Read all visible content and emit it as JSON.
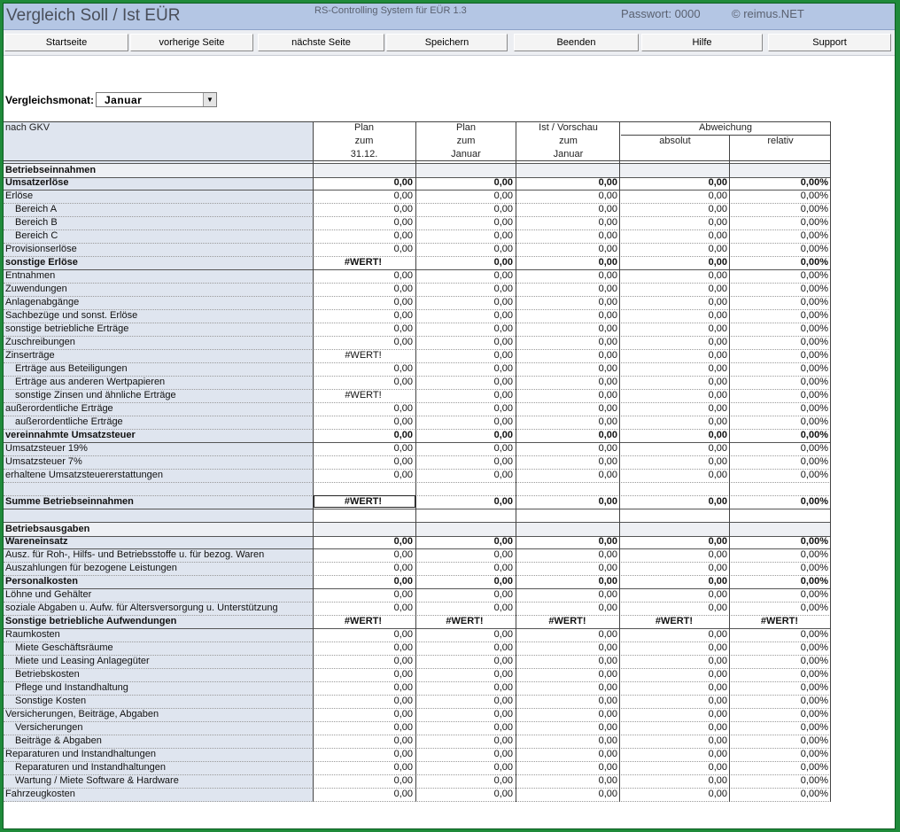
{
  "titlebar": {
    "title": "Vergleich Soll / Ist EÜR",
    "subtitle": "RS-Controlling System für EÜR 1.3",
    "password": "Passwort: 0000",
    "copyright": "© reimus.NET"
  },
  "toolbar": {
    "buttons": [
      "Startseite",
      "vorherige Seite",
      "nächste Seite",
      "Speichern",
      "Beenden",
      "Hilfe",
      "Support"
    ]
  },
  "month": {
    "label": "Vergleichsmonat:",
    "value": "Januar"
  },
  "table": {
    "header": {
      "first_col": "nach GKV",
      "col_plan_year": [
        "Plan",
        "zum",
        "31.12."
      ],
      "col_plan_month": [
        "Plan",
        "zum",
        "Januar"
      ],
      "col_actual": [
        "Ist / Vorschau",
        "zum",
        "Januar"
      ],
      "deviation": "Abweichung",
      "absolute": "absolut",
      "relative": "relativ"
    },
    "rows": [
      {
        "label": "Betriebseinnahmen",
        "style": "sec",
        "values": []
      },
      {
        "label": "Umsatzerlöse",
        "style": "bold",
        "values": [
          "0,00",
          "0,00",
          "0,00",
          "0,00",
          "0,00%"
        ]
      },
      {
        "label": "Erlöse",
        "style": "",
        "values": [
          "0,00",
          "0,00",
          "0,00",
          "0,00",
          "0,00%"
        ]
      },
      {
        "label": "Bereich A",
        "style": "ind",
        "values": [
          "0,00",
          "0,00",
          "0,00",
          "0,00",
          "0,00%"
        ]
      },
      {
        "label": "Bereich B",
        "style": "ind",
        "values": [
          "0,00",
          "0,00",
          "0,00",
          "0,00",
          "0,00%"
        ]
      },
      {
        "label": "Bereich C",
        "style": "ind",
        "values": [
          "0,00",
          "0,00",
          "0,00",
          "0,00",
          "0,00%"
        ]
      },
      {
        "label": "Provisionserlöse",
        "style": "",
        "values": [
          "0,00",
          "0,00",
          "0,00",
          "0,00",
          "0,00%"
        ]
      },
      {
        "label": "sonstige Erlöse",
        "style": "bold",
        "values": [
          "#WERT!",
          "0,00",
          "0,00",
          "0,00",
          "0,00%"
        ]
      },
      {
        "label": "Entnahmen",
        "style": "",
        "values": [
          "0,00",
          "0,00",
          "0,00",
          "0,00",
          "0,00%"
        ]
      },
      {
        "label": "Zuwendungen",
        "style": "",
        "values": [
          "0,00",
          "0,00",
          "0,00",
          "0,00",
          "0,00%"
        ]
      },
      {
        "label": "Anlagenabgänge",
        "style": "",
        "values": [
          "0,00",
          "0,00",
          "0,00",
          "0,00",
          "0,00%"
        ]
      },
      {
        "label": "Sachbezüge und sonst. Erlöse",
        "style": "",
        "values": [
          "0,00",
          "0,00",
          "0,00",
          "0,00",
          "0,00%"
        ]
      },
      {
        "label": "sonstige betriebliche Erträge",
        "style": "",
        "values": [
          "0,00",
          "0,00",
          "0,00",
          "0,00",
          "0,00%"
        ]
      },
      {
        "label": "Zuschreibungen",
        "style": "",
        "values": [
          "0,00",
          "0,00",
          "0,00",
          "0,00",
          "0,00%"
        ]
      },
      {
        "label": "Zinserträge",
        "style": "",
        "values": [
          "#WERT!",
          "0,00",
          "0,00",
          "0,00",
          "0,00%"
        ]
      },
      {
        "label": "Erträge aus Beteiligungen",
        "style": "ind",
        "values": [
          "0,00",
          "0,00",
          "0,00",
          "0,00",
          "0,00%"
        ]
      },
      {
        "label": "Erträge aus anderen Wertpapieren",
        "style": "ind",
        "values": [
          "0,00",
          "0,00",
          "0,00",
          "0,00",
          "0,00%"
        ]
      },
      {
        "label": "sonstige Zinsen und ähnliche Erträge",
        "style": "ind",
        "values": [
          "#WERT!",
          "0,00",
          "0,00",
          "0,00",
          "0,00%"
        ]
      },
      {
        "label": "außerordentliche Erträge",
        "style": "",
        "values": [
          "0,00",
          "0,00",
          "0,00",
          "0,00",
          "0,00%"
        ]
      },
      {
        "label": "außerordentliche Erträge",
        "style": "ind",
        "values": [
          "0,00",
          "0,00",
          "0,00",
          "0,00",
          "0,00%"
        ]
      },
      {
        "label": "vereinnahmte Umsatzsteuer",
        "style": "bold",
        "values": [
          "0,00",
          "0,00",
          "0,00",
          "0,00",
          "0,00%"
        ]
      },
      {
        "label": "Umsatzsteuer 19%",
        "style": "",
        "values": [
          "0,00",
          "0,00",
          "0,00",
          "0,00",
          "0,00%"
        ]
      },
      {
        "label": "Umsatzsteuer 7%",
        "style": "",
        "values": [
          "0,00",
          "0,00",
          "0,00",
          "0,00",
          "0,00%"
        ]
      },
      {
        "label": "erhaltene Umsatzsteuererstattungen",
        "style": "",
        "values": [
          "0,00",
          "0,00",
          "0,00",
          "0,00",
          "0,00%"
        ]
      },
      {
        "label": "",
        "style": "",
        "values": []
      },
      {
        "label": "Summe Betriebseinnahmen",
        "style": "bold",
        "values": [
          "#WERT!",
          "0,00",
          "0,00",
          "0,00",
          "0,00%"
        ]
      },
      {
        "label": "",
        "style": "",
        "values": []
      },
      {
        "label": "Betriebsausgaben",
        "style": "sec",
        "values": []
      },
      {
        "label": "Wareneinsatz",
        "style": "bold",
        "values": [
          "0,00",
          "0,00",
          "0,00",
          "0,00",
          "0,00%"
        ]
      },
      {
        "label": "Ausz. für Roh-, Hilfs- und Betriebsstoffe u. für bezog. Waren",
        "style": "",
        "values": [
          "0,00",
          "0,00",
          "0,00",
          "0,00",
          "0,00%"
        ]
      },
      {
        "label": "Auszahlungen für bezogene Leistungen",
        "style": "",
        "values": [
          "0,00",
          "0,00",
          "0,00",
          "0,00",
          "0,00%"
        ]
      },
      {
        "label": "Personalkosten",
        "style": "bold",
        "values": [
          "0,00",
          "0,00",
          "0,00",
          "0,00",
          "0,00%"
        ]
      },
      {
        "label": "Löhne und Gehälter",
        "style": "",
        "values": [
          "0,00",
          "0,00",
          "0,00",
          "0,00",
          "0,00%"
        ]
      },
      {
        "label": "soziale Abgaben u. Aufw. für Altersversorgung u. Unterstützung",
        "style": "",
        "values": [
          "0,00",
          "0,00",
          "0,00",
          "0,00",
          "0,00%"
        ]
      },
      {
        "label": "Sonstige betriebliche Aufwendungen",
        "style": "bold",
        "values": [
          "#WERT!",
          "#WERT!",
          "#WERT!",
          "#WERT!",
          "#WERT!"
        ]
      },
      {
        "label": "Raumkosten",
        "style": "",
        "values": [
          "0,00",
          "0,00",
          "0,00",
          "0,00",
          "0,00%"
        ]
      },
      {
        "label": "Miete Geschäftsräume",
        "style": "ind",
        "values": [
          "0,00",
          "0,00",
          "0,00",
          "0,00",
          "0,00%"
        ]
      },
      {
        "label": "Miete und Leasing Anlagegüter",
        "style": "ind",
        "values": [
          "0,00",
          "0,00",
          "0,00",
          "0,00",
          "0,00%"
        ]
      },
      {
        "label": "Betriebskosten",
        "style": "ind",
        "values": [
          "0,00",
          "0,00",
          "0,00",
          "0,00",
          "0,00%"
        ]
      },
      {
        "label": "Pflege und Instandhaltung",
        "style": "ind",
        "values": [
          "0,00",
          "0,00",
          "0,00",
          "0,00",
          "0,00%"
        ]
      },
      {
        "label": "Sonstige Kosten",
        "style": "ind",
        "values": [
          "0,00",
          "0,00",
          "0,00",
          "0,00",
          "0,00%"
        ]
      },
      {
        "label": "Versicherungen, Beiträge, Abgaben",
        "style": "",
        "values": [
          "0,00",
          "0,00",
          "0,00",
          "0,00",
          "0,00%"
        ]
      },
      {
        "label": "Versicherungen",
        "style": "ind",
        "values": [
          "0,00",
          "0,00",
          "0,00",
          "0,00",
          "0,00%"
        ]
      },
      {
        "label": "Beiträge & Abgaben",
        "style": "ind",
        "values": [
          "0,00",
          "0,00",
          "0,00",
          "0,00",
          "0,00%"
        ]
      },
      {
        "label": "Reparaturen und Instandhaltungen",
        "style": "",
        "values": [
          "0,00",
          "0,00",
          "0,00",
          "0,00",
          "0,00%"
        ]
      },
      {
        "label": "Reparaturen und Instandhaltungen",
        "style": "ind",
        "values": [
          "0,00",
          "0,00",
          "0,00",
          "0,00",
          "0,00%"
        ]
      },
      {
        "label": "Wartung / Miete Software & Hardware",
        "style": "ind",
        "values": [
          "0,00",
          "0,00",
          "0,00",
          "0,00",
          "0,00%"
        ]
      },
      {
        "label": "Fahrzeugkosten",
        "style": "",
        "values": [
          "0,00",
          "0,00",
          "0,00",
          "0,00",
          "0,00%"
        ]
      }
    ]
  }
}
